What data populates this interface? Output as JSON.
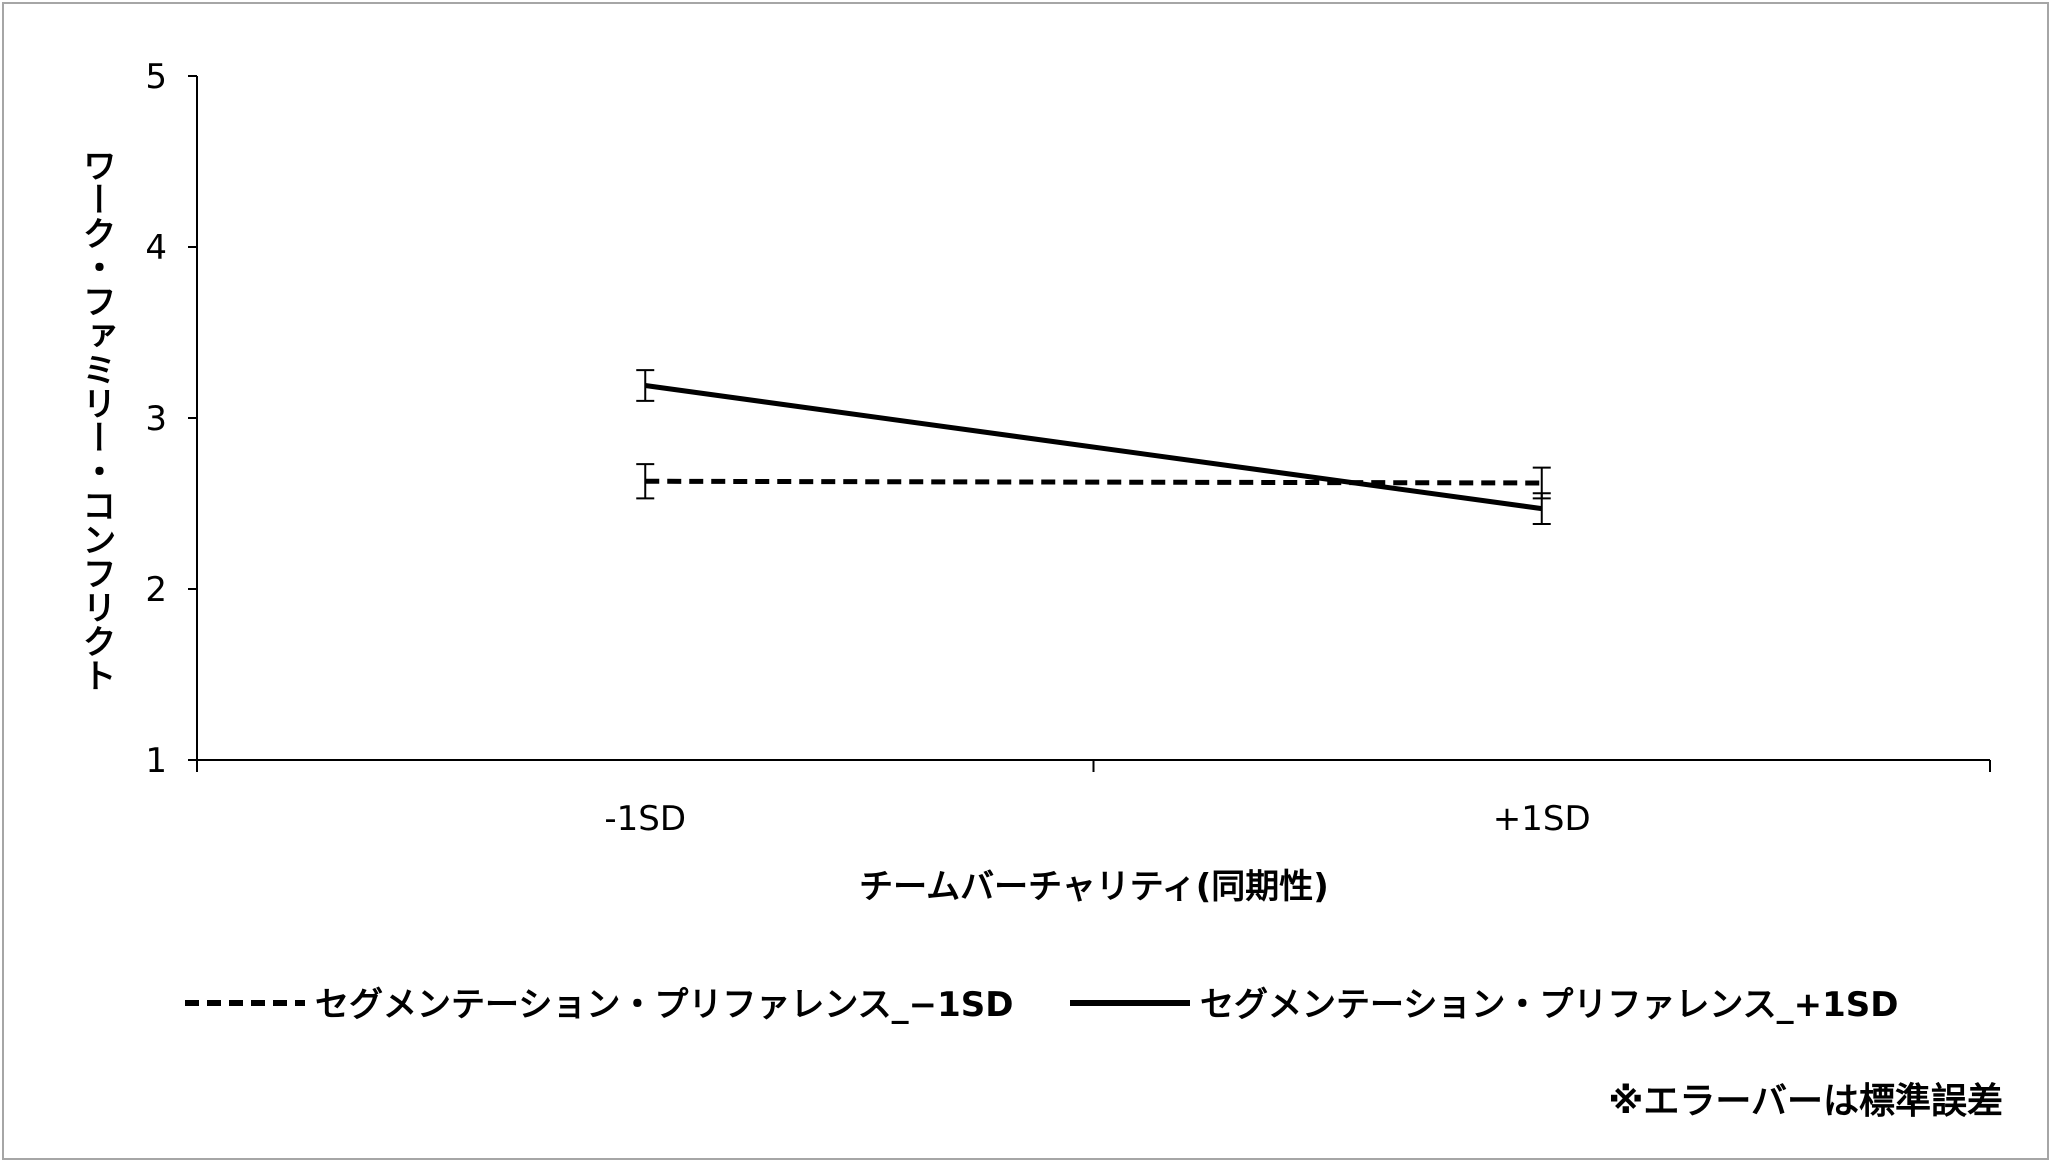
{
  "chart_data": {
    "type": "line",
    "title": "",
    "xlabel": "チームバーチャリティ(同期性)",
    "ylabel": "ワーク・ファミリー・コンフリクト",
    "categories": [
      "-1SD",
      "+1SD"
    ],
    "ylim": [
      1,
      5
    ],
    "yticks": [
      "1",
      "2",
      "3",
      "4",
      "5"
    ],
    "grid": false,
    "legend_position": "bottom",
    "series": [
      {
        "name": "セグメンテーション・プリファレンス_−1SD",
        "style": "dashed",
        "color": "#000000",
        "values": [
          2.63,
          2.62
        ],
        "errors": [
          0.1,
          0.09
        ]
      },
      {
        "name": "セグメンテーション・プリファレンス_+1SD",
        "style": "solid",
        "color": "#000000",
        "values": [
          3.19,
          2.47
        ],
        "errors": [
          0.09,
          0.09
        ]
      }
    ],
    "note": "※エラーバーは標準誤差"
  }
}
